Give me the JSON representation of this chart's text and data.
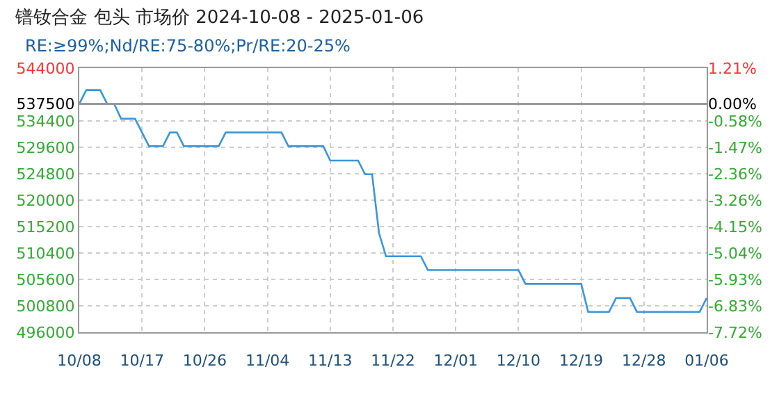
{
  "chart_data": {
    "type": "line",
    "title": "镨钕合金 包头 市场价 2024-10-08 - 2025-01-06",
    "subtitle": "RE:≥99%;Nd/RE:75-80%;Pr/RE:20-25%",
    "series": [
      {
        "color": "#3a96d8",
        "x": [
          "2024-10-08",
          "2024-10-09",
          "2024-10-11",
          "2024-10-12",
          "2024-10-13",
          "2024-10-14",
          "2024-10-16",
          "2024-10-18",
          "2024-10-20",
          "2024-10-21",
          "2024-10-22",
          "2024-10-23",
          "2024-10-28",
          "2024-10-29",
          "2024-11-06",
          "2024-11-07",
          "2024-11-12",
          "2024-11-13",
          "2024-11-17",
          "2024-11-18",
          "2024-11-19",
          "2024-11-20",
          "2024-11-21",
          "2024-11-26",
          "2024-11-27",
          "2024-12-10",
          "2024-12-11",
          "2024-12-19",
          "2024-12-20",
          "2024-12-23",
          "2024-12-24",
          "2024-12-26",
          "2024-12-27",
          "2025-01-05",
          "2025-01-06"
        ],
        "values": [
          537500,
          540000,
          540000,
          537500,
          537500,
          534800,
          534800,
          529800,
          529800,
          532300,
          532300,
          529800,
          529800,
          532300,
          532300,
          529800,
          529800,
          527200,
          527200,
          524700,
          524700,
          514000,
          509800,
          509800,
          507300,
          507300,
          504800,
          504800,
          499700,
          499700,
          502200,
          502200,
          499700,
          499700,
          502200
        ]
      }
    ],
    "xlim": [
      "2024-10-08",
      "2025-01-06"
    ],
    "xticks": [
      {
        "value": "2024-10-08",
        "label": "10/08"
      },
      {
        "value": "2024-10-17",
        "label": "10/17"
      },
      {
        "value": "2024-10-26",
        "label": "10/26"
      },
      {
        "value": "2024-11-04",
        "label": "11/04"
      },
      {
        "value": "2024-11-13",
        "label": "11/13"
      },
      {
        "value": "2024-11-22",
        "label": "11/22"
      },
      {
        "value": "2024-12-01",
        "label": "12/01"
      },
      {
        "value": "2024-12-10",
        "label": "12/10"
      },
      {
        "value": "2024-12-19",
        "label": "12/19"
      },
      {
        "value": "2024-12-28",
        "label": "12/28"
      },
      {
        "value": "2025-01-06",
        "label": "01/06"
      }
    ],
    "ylim": [
      496000,
      544000
    ],
    "yticks": [
      496000,
      500800,
      505600,
      510400,
      515200,
      520000,
      524800,
      529600,
      534400,
      537500,
      544000
    ],
    "y2lim": [
      -7.72,
      1.21
    ],
    "y2ticks": [
      {
        "value": -7.72,
        "label": "-7.72%"
      },
      {
        "value": -6.83,
        "label": "-6.83%"
      },
      {
        "value": -5.93,
        "label": "-5.93%"
      },
      {
        "value": -5.04,
        "label": "-5.04%"
      },
      {
        "value": -4.15,
        "label": "-4.15%"
      },
      {
        "value": -3.26,
        "label": "-3.26%"
      },
      {
        "value": -2.36,
        "label": "-2.36%"
      },
      {
        "value": -1.47,
        "label": "-1.47%"
      },
      {
        "value": -0.58,
        "label": "-0.58%"
      },
      {
        "value": 0,
        "label": "0.00%"
      },
      {
        "value": 1.21,
        "label": "1.21%"
      }
    ],
    "ref_lines": [
      {
        "axis": "y",
        "value": 537500,
        "color": "#999999"
      }
    ],
    "grid": true,
    "legend": false,
    "marker": "none",
    "line_style": "solid"
  }
}
